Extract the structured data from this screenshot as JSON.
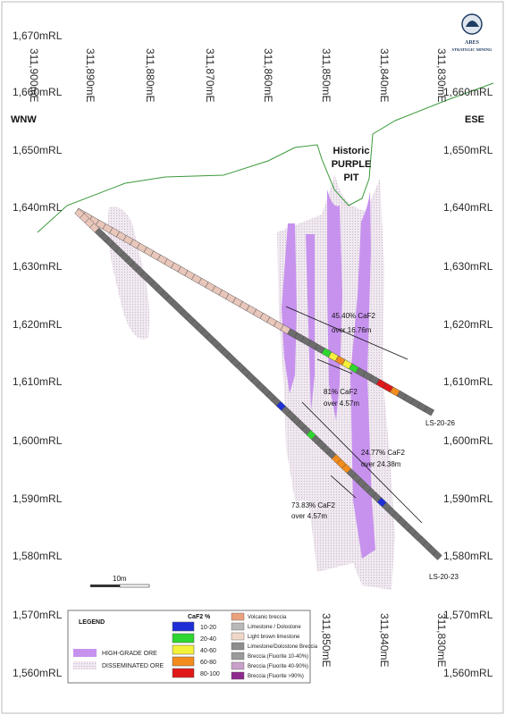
{
  "logo": {
    "name": "ARES",
    "tagline": "STRATEGIC MINING"
  },
  "directions": {
    "west": "WNW",
    "east": "ESE"
  },
  "pit_label": [
    "Historic",
    "PURPLE",
    "PIT"
  ],
  "rl_labels": [
    "1,670mRL",
    "1,660mRL",
    "1,650mRL",
    "1,640mRL",
    "1,630mRL",
    "1,620mRL",
    "1,610mRL",
    "1,600mRL",
    "1,590mRL",
    "1,580mRL",
    "1,570mRL",
    "1,560mRL"
  ],
  "rl_right_labels": [
    "1,660mRL",
    "1,650mRL",
    "1,640mRL",
    "1,630mRL",
    "1,620mRL",
    "1,610mRL",
    "1,600mRL",
    "1,590mRL",
    "1,580mRL",
    "1,570mRL",
    "1,560mRL"
  ],
  "easting_top": [
    "311,900mE",
    "311,890mE",
    "311,880mE",
    "311,870mE",
    "311,860mE",
    "311,850mE",
    "311,840mE",
    "311,830mE"
  ],
  "easting_bottom": [
    "311,850mE",
    "311,840mE",
    "311,830mE"
  ],
  "drill_holes": [
    {
      "id": "LS-20-26"
    },
    {
      "id": "LS-20-23"
    }
  ],
  "intercepts": [
    {
      "grade": "45.40% CaF2",
      "width": "over 16.76m"
    },
    {
      "grade": "81% CaF2",
      "width": "over 4.57m"
    },
    {
      "grade": "24.77% CaF2",
      "width": "over 24.38m"
    },
    {
      "grade": "73.83% CaF2",
      "width": "over 4.57m"
    }
  ],
  "scale_bar": {
    "label": "10m"
  },
  "legend": {
    "title": "LEGEND",
    "ore_types": [
      {
        "label": "HIGH-GRADE ORE",
        "color": "#c792ee"
      },
      {
        "label": "DISSEMINATED ORE",
        "color": "#e6dbe8"
      }
    ],
    "grade_title": "CaF2 %",
    "grade_bins": [
      {
        "label": "10-20",
        "color": "#1f2fd6"
      },
      {
        "label": "20-40",
        "color": "#2fd62f"
      },
      {
        "label": "40-60",
        "color": "#f4f13a"
      },
      {
        "label": "60-80",
        "color": "#f28c1c"
      },
      {
        "label": "80-100",
        "color": "#e01818"
      }
    ],
    "lithology": [
      {
        "label": "Volcanic breccia",
        "color": "#e9a27c"
      },
      {
        "label": "Limestone / Dolostone",
        "color": "#b9b9b9"
      },
      {
        "label": "Light brown limestone",
        "color": "#efd8c8"
      },
      {
        "label": "Limestone/Dolostone Breccia",
        "color": "#8e8e8e"
      },
      {
        "label": "Breccia (Fluorite 10-40%)",
        "color": "#9a9a9a"
      },
      {
        "label": "Breccia (Fluorite 40-90%)",
        "color": "#c9a0c9"
      },
      {
        "label": "Breccia (Fluorite >90%)",
        "color": "#8e2a8e"
      }
    ]
  },
  "colors": {
    "topography": "#3a9a3a",
    "hole": "#6d6d6d",
    "pink": "#e8c6ba"
  }
}
